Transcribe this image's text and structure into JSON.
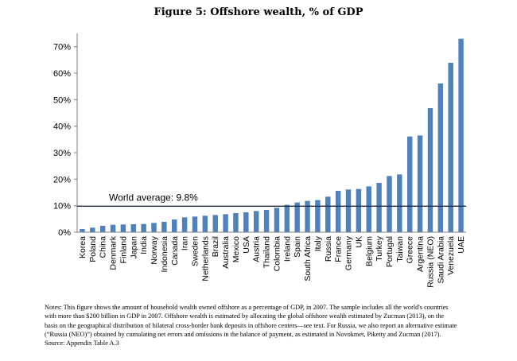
{
  "chart_data": {
    "type": "bar",
    "title": "Figure 5: Offshore wealth, % of GDP",
    "categories": [
      "Korea",
      "Poland",
      "China",
      "Denmark",
      "Finland",
      "Japan",
      "India",
      "Norway",
      "Indonesia",
      "Canada",
      "Iran",
      "Sweden",
      "Netherlands",
      "Brazil",
      "Australia",
      "Mexico",
      "USA",
      "Austria",
      "Thailand",
      "Colombia",
      "Ireland",
      "Spain",
      "South Africa",
      "Italy",
      "Russia",
      "France",
      "Germany",
      "UK",
      "Belgium",
      "Turkey",
      "Portugal",
      "Taiwan",
      "Greece",
      "Argentina",
      "Russia (NEO)",
      "Saudi Arabia",
      "Venezuela",
      "UAE"
    ],
    "values": [
      1.2,
      1.7,
      2.4,
      2.8,
      2.9,
      3.0,
      3.1,
      3.5,
      3.9,
      4.8,
      5.6,
      5.9,
      6.2,
      6.5,
      6.8,
      7.2,
      7.5,
      8.0,
      8.4,
      9.2,
      10.3,
      11.2,
      11.8,
      12.1,
      13.4,
      15.6,
      16.1,
      16.3,
      17.3,
      18.6,
      21.2,
      21.8,
      36.1,
      36.5,
      46.8,
      56.1,
      63.9,
      73.0
    ],
    "ylim": [
      0,
      75
    ],
    "yticks": [
      0,
      10,
      20,
      30,
      40,
      50,
      60,
      70
    ],
    "ytick_labels": [
      "0%",
      "10%",
      "20%",
      "30%",
      "40%",
      "50%",
      "60%",
      "70%"
    ],
    "xlabel": "",
    "ylabel": "",
    "grid": false,
    "legend": "none",
    "bar_color": "#4f81bd",
    "reference_line": {
      "value": 9.8,
      "label": "World average: 9.8%",
      "color": "#1f2a44"
    }
  },
  "notes": {
    "line1": "Notes: This figure shows the amount of household wealth owned offshore as a percentage of GDP, in 2007. The sample includes all the world's countries",
    "line2": "with more than $200 billion in GDP in 2007. Offshore wealth is estimated by allocating the global offshore wealth estimated by Zucman (2013), on the",
    "line3": "basis on the geographical distribution of bilateral cross-border bank deposits in offshore centers—see text. For Russia, we also report an alternative estimate",
    "line4": "(“Russia (NEO)”) obtained by cumulating net errors and omissions in the balance of payment, as estimated in Novokmet, Piketty and Zucman (2017).",
    "line5": "Source: Appendix Table A.3"
  }
}
